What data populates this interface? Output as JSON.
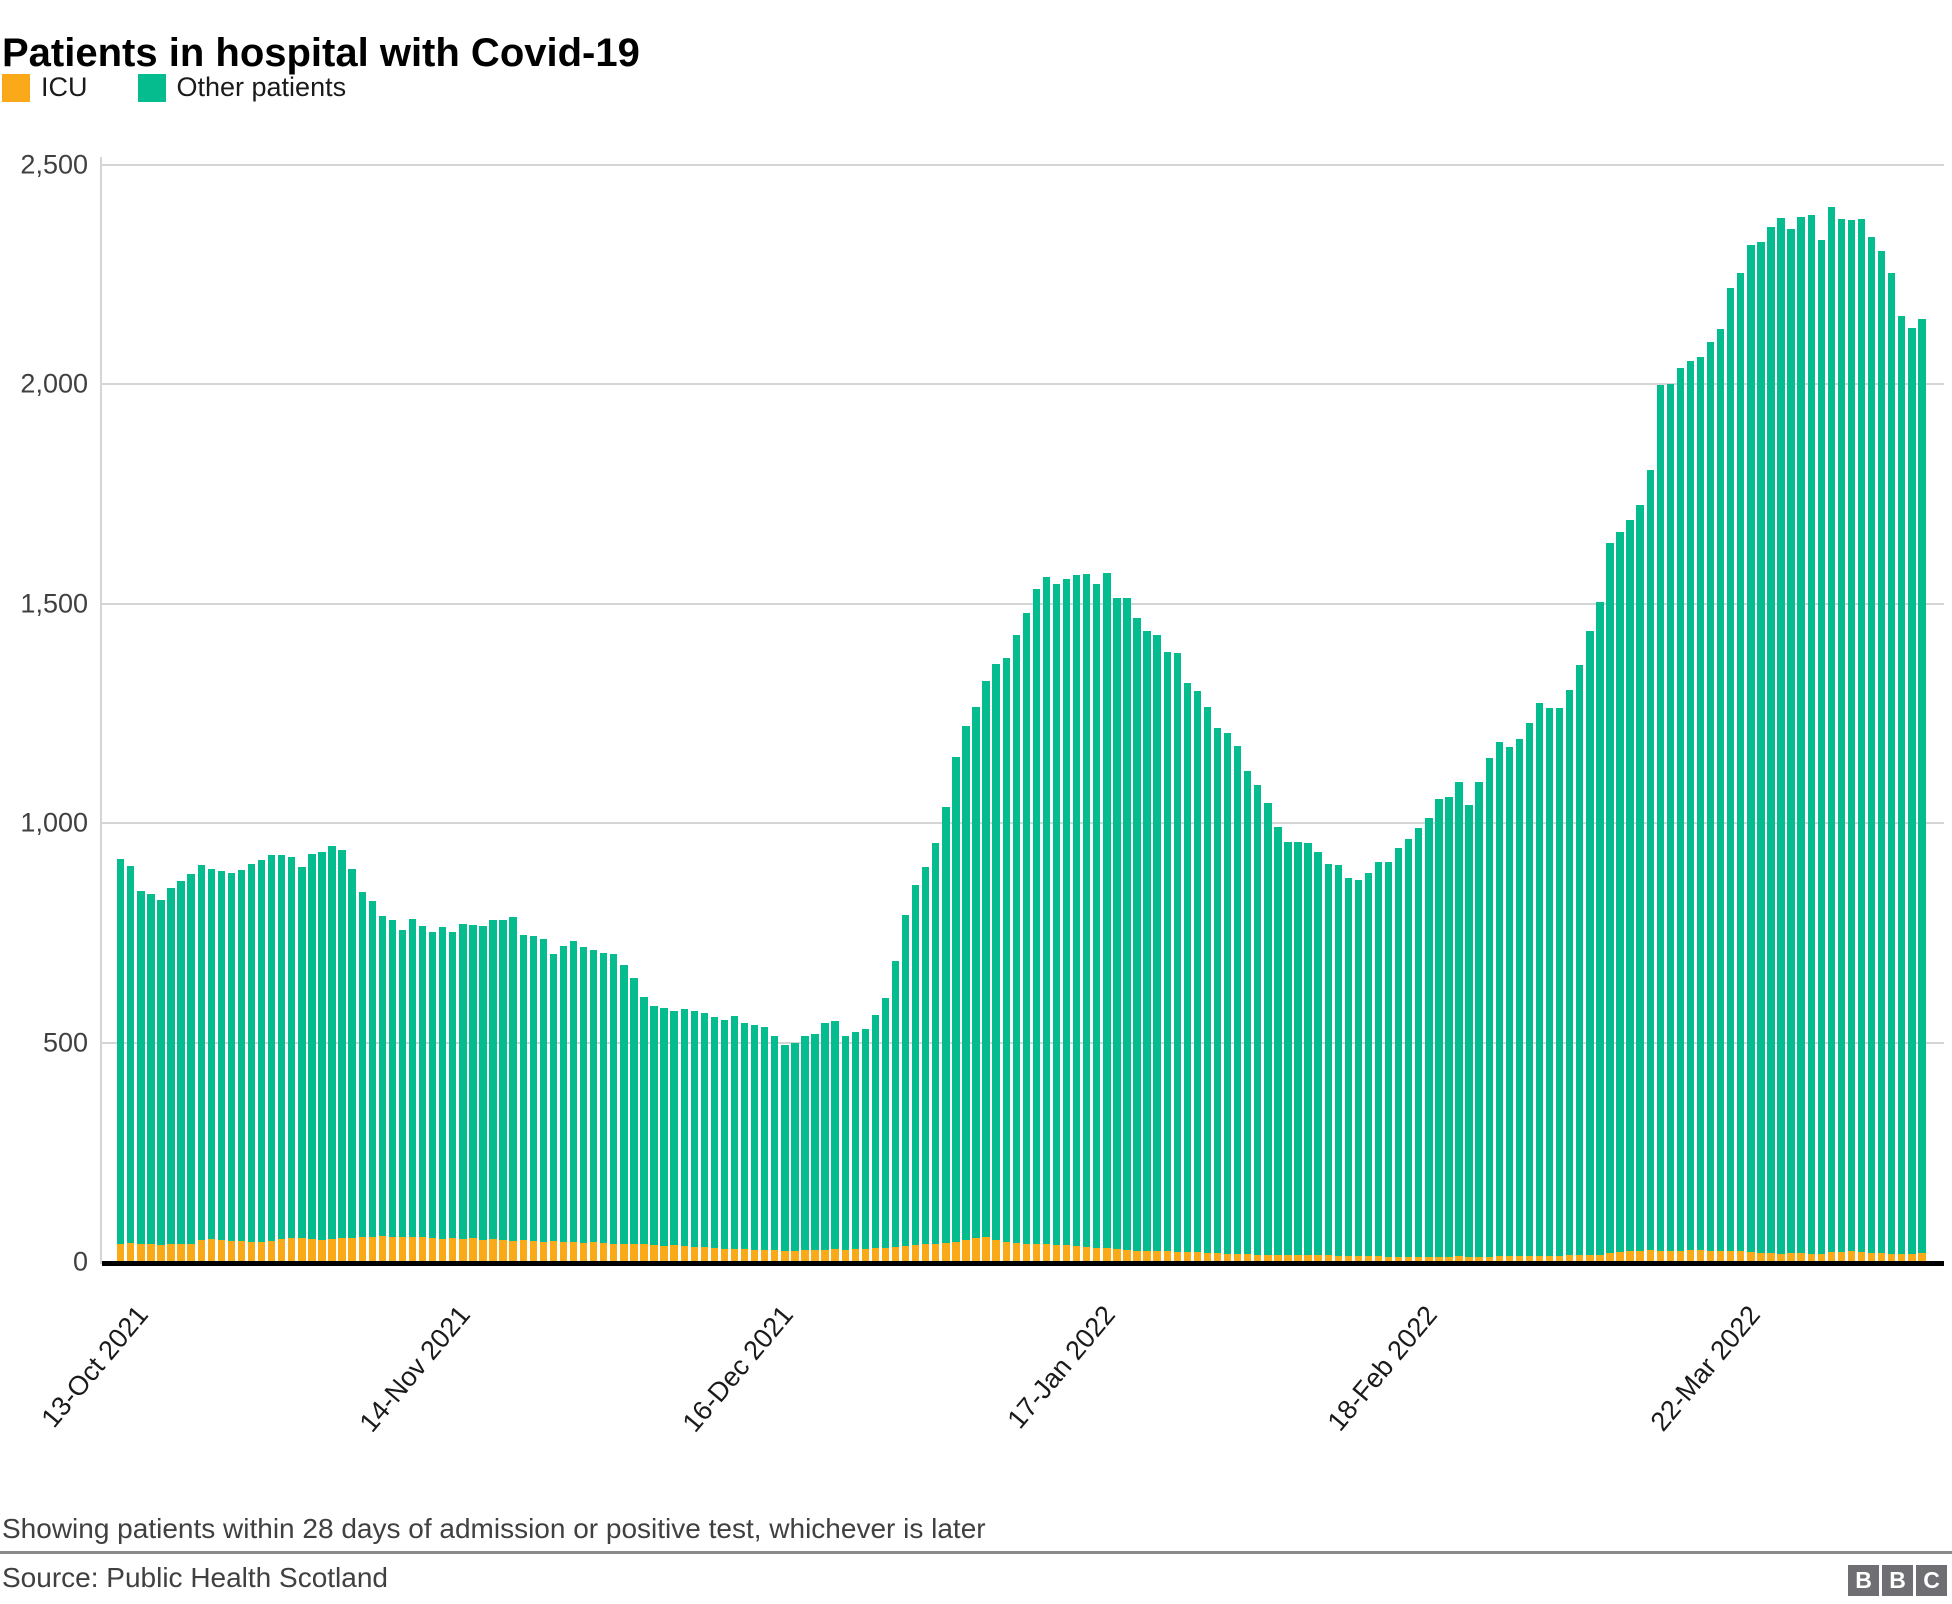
{
  "header": {
    "title": "Patients in hospital with Covid-19"
  },
  "footer": {
    "note": "Showing patients within 28 days of admission or positive test, whichever is later",
    "source": "Source: Public Health Scotland",
    "logo_letters": [
      "B",
      "B",
      "C"
    ]
  },
  "colors": {
    "icu": "#FAA919",
    "other": "#04BC8E",
    "grid": "#d5d5d5",
    "axis_text": "#404040",
    "baseline": "#000000"
  },
  "chart_data": {
    "type": "bar",
    "subtype": "stacked-daily",
    "title": "Patients in hospital with Covid-19",
    "xlabel": "",
    "ylabel": "",
    "ylim": [
      0,
      2500
    ],
    "grid": "horizontal",
    "legend_position": "top-left",
    "y_axis": {
      "tick_values": [
        0,
        500,
        1000,
        1500,
        2000,
        2500
      ],
      "tick_labels": [
        "0",
        "500",
        "1,000",
        "1,500",
        "2,000",
        "2,500"
      ]
    },
    "x_axis": {
      "n_bars": 180,
      "labels": [
        {
          "label": "13-Oct 2021",
          "day": 0
        },
        {
          "label": "14-Nov 2021",
          "day": 32
        },
        {
          "label": "16-Dec 2021",
          "day": 64
        },
        {
          "label": "17-Jan 2022",
          "day": 96
        },
        {
          "label": "18-Feb 2022",
          "day": 128
        },
        {
          "label": "22-Mar 2022",
          "day": 160
        }
      ]
    },
    "series": [
      {
        "name": "ICU",
        "color": "#FAA919",
        "values": [
          42,
          44,
          40,
          40,
          38,
          40,
          42,
          42,
          50,
          52,
          50,
          48,
          47,
          46,
          45,
          48,
          52,
          55,
          54,
          52,
          50,
          52,
          54,
          55,
          56,
          58,
          60,
          58,
          56,
          57,
          58,
          55,
          52,
          54,
          53,
          55,
          50,
          52,
          50,
          48,
          50,
          48,
          46,
          48,
          46,
          45,
          44,
          46,
          44,
          42,
          40,
          42,
          40,
          38,
          36,
          38,
          36,
          35,
          34,
          32,
          30,
          30,
          29,
          28,
          28,
          27,
          26,
          26,
          27,
          28,
          28,
          29,
          28,
          29,
          30,
          32,
          33,
          34,
          36,
          38,
          40,
          42,
          44,
          46,
          50,
          54,
          57,
          50,
          46,
          43,
          41,
          41,
          41,
          39,
          38,
          36,
          34,
          33,
          31,
          29,
          27,
          26,
          26,
          25,
          24,
          23,
          22,
          22,
          21,
          20,
          19,
          18,
          18,
          17,
          17,
          16,
          16,
          16,
          15,
          15,
          15,
          14,
          14,
          13,
          13,
          13,
          12,
          12,
          12,
          12,
          12,
          12,
          12,
          13,
          12,
          12,
          12,
          13,
          13,
          13,
          13,
          14,
          14,
          14,
          15,
          15,
          16,
          17,
          20,
          22,
          24,
          26,
          27,
          26,
          25,
          26,
          27,
          28,
          26,
          25,
          24,
          26,
          23,
          21,
          20,
          19,
          20,
          20,
          19,
          18,
          22,
          23,
          24,
          22,
          21,
          20,
          19,
          18,
          19,
          20
        ]
      },
      {
        "name": "Other patients",
        "color": "#04BC8E",
        "totals_with_icu": [
          918,
          903,
          845,
          838,
          825,
          853,
          868,
          885,
          905,
          895,
          890,
          886,
          894,
          908,
          917,
          928,
          927,
          923,
          900,
          929,
          934,
          948,
          940,
          896,
          843,
          823,
          789,
          779,
          756,
          782,
          765,
          752,
          763,
          752,
          770,
          767,
          765,
          779,
          780,
          786,
          746,
          742,
          737,
          703,
          720,
          732,
          718,
          711,
          705,
          701,
          677,
          648,
          605,
          583,
          578,
          572,
          576,
          572,
          567,
          558,
          552,
          560,
          545,
          540,
          535,
          515,
          495,
          500,
          515,
          520,
          545,
          550,
          515,
          525,
          532,
          562,
          602,
          685,
          790,
          860,
          900,
          955,
          1038,
          1150,
          1222,
          1265,
          1324,
          1363,
          1376,
          1430,
          1479,
          1534,
          1560,
          1546,
          1557,
          1565,
          1569,
          1546,
          1571,
          1514,
          1514,
          1467,
          1439,
          1430,
          1391,
          1388,
          1320,
          1301,
          1264,
          1218,
          1206,
          1177,
          1120,
          1087,
          1046,
          992,
          958,
          958,
          954,
          935,
          908,
          904,
          876,
          870,
          886,
          912,
          912,
          944,
          963,
          990,
          1011,
          1055,
          1059,
          1095,
          1042,
          1095,
          1149,
          1184,
          1173,
          1191,
          1229,
          1274,
          1263,
          1263,
          1304,
          1361,
          1439,
          1505,
          1638,
          1663,
          1690,
          1725,
          1804,
          1998,
          2002,
          2038,
          2053,
          2063,
          2096,
          2127,
          2219,
          2255,
          2318,
          2325,
          2359,
          2380,
          2355,
          2382,
          2387,
          2330,
          2405,
          2377,
          2374,
          2378,
          2336,
          2303,
          2253,
          2156,
          2129,
          2148
        ]
      }
    ]
  }
}
